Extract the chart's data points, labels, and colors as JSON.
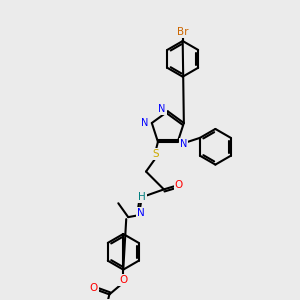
{
  "bg_color": "#ebebeb",
  "bond_color": "#000000",
  "atom_colors": {
    "N": "#0000ff",
    "O": "#ff0000",
    "S": "#ccaa00",
    "Br": "#cc6600",
    "H": "#008080",
    "C": "#000000"
  },
  "lw": 1.5,
  "fs": 7.5,
  "R_hex": 18,
  "R_tri": 16
}
